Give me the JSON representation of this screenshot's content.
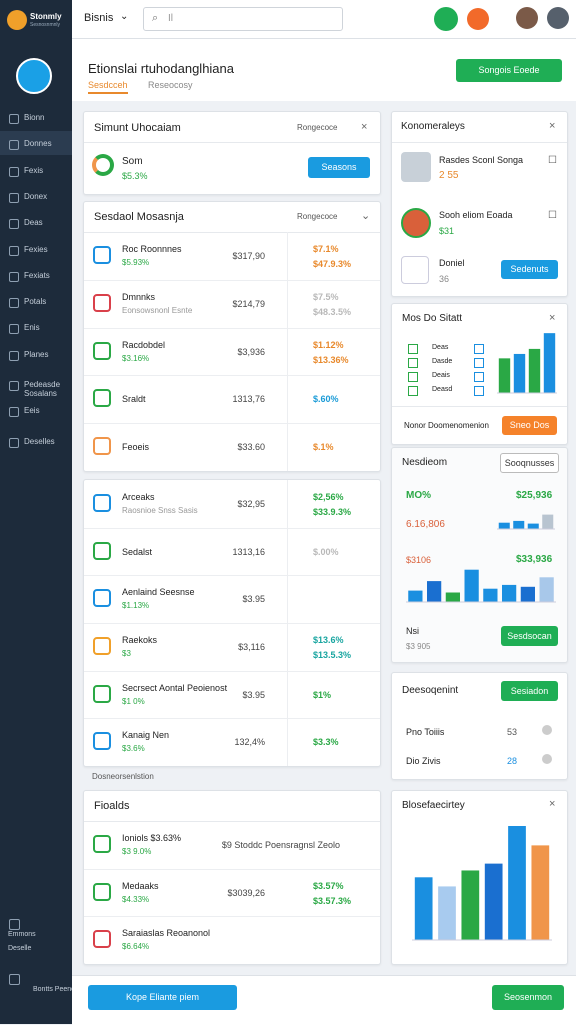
{
  "topbar": {
    "workspace": "Bisnis",
    "search": "Il"
  },
  "sidebar": {
    "brand": "Stonmly",
    "brand_sub": "Sesnosnmnly",
    "nav": [
      "Bionn",
      "Donnes",
      "Fexis",
      "Donex",
      "Deas",
      "Fexies",
      "Fexiats",
      "Potals",
      "Enis",
      "Planes",
      "Pedeasde Sosalans",
      "Eeis",
      "Deselles"
    ],
    "footer": [
      "Emmons",
      "Deselle",
      "Bontts Peenos"
    ]
  },
  "header": {
    "title": "Etionslai rtuhodanglhiana",
    "tabs": [
      "Sesdcceh",
      "Reseocosy"
    ],
    "button": "Songois Eoede"
  },
  "left": {
    "panel1": {
      "title": "Simunt Uhocaiam",
      "action": "Rongecoce",
      "item": "Som",
      "item_sub": "$5.3%",
      "button": "Seasons"
    },
    "panel2": {
      "title": "Sesdaol Mosasnja",
      "action": "Rongecoce",
      "rows": [
        {
          "title": "Roc Roonnnes",
          "sub": "$5.93%",
          "value": "$317,90",
          "pct": "$7.1%",
          "pct2": "$47.9.3%",
          "color": "#e8892c"
        },
        {
          "title": "Dmnnks",
          "sub": "Eonsowsnonl Esnte",
          "value": "$214,79",
          "pct": "$7.5%",
          "pct2": "$48.3.5%",
          "color": "#b8b8b8"
        },
        {
          "title": "Racdobdel",
          "sub": "$3.16%",
          "value": "$3,936",
          "pct": "$1.12%",
          "pct2": "$13.36%",
          "color": "#e8892c"
        },
        {
          "title": "Sraldt",
          "value": "1313,76",
          "pct": "$.60%",
          "color": "#1a9bd7"
        },
        {
          "title": "Feoeis",
          "value": "$33.60",
          "pct": "$.1%",
          "color": "#e8892c"
        }
      ]
    },
    "panel3": {
      "rows": [
        {
          "title": "Arceaks",
          "sub": "Raosnioe Snss Sasis",
          "value": "$32,95",
          "pct": "$2,56%",
          "pct2": "$33.9.3%",
          "color": "#2aa845"
        },
        {
          "title": "Sedalst",
          "value": "1313,16",
          "pct": "$.00%",
          "color": "#b8b8b8"
        },
        {
          "title": "Aenlaind Seesnse",
          "sub": "$1.13%",
          "value": "$3.95"
        },
        {
          "title": "Raekoks",
          "sub": "$3",
          "value": "$3,116",
          "pct": "$13.6%",
          "pct2": "$13.5.3%",
          "color": "#18a5a0"
        },
        {
          "title": "Secrsect Aontal Peoienost",
          "sub": "$1 0%",
          "value": "$3.95",
          "pct": "$1%",
          "color": "#2aa845"
        },
        {
          "title": "Kanaig Nen",
          "sub": "$3.6%",
          "value": "132,4%",
          "pct": "$3.3%",
          "color": "#2aa845"
        }
      ]
    },
    "section_label": "Dosneorsenlstion",
    "panel4": {
      "title": "Fioalds",
      "rows": [
        {
          "title": "Ioniols $3.63%",
          "sub": "$3 9.0%",
          "value": "$9 Stoddc Poensragnsl Zeolo"
        },
        {
          "title": "Medaaks",
          "sub": "$4.33%",
          "value": "$3039,26",
          "pct": "$3.57%",
          "pct2": "$3.57.3%",
          "color": "#2aa845"
        },
        {
          "title": "Saraiaslas Reoanonol",
          "sub": "$6.64%"
        }
      ]
    }
  },
  "right": {
    "panelA": {
      "title": "Konomeraleys",
      "items": [
        {
          "title": "Rasdes Sconl Songa",
          "sub": "2 55"
        },
        {
          "title": "Sooh eliom Eoada",
          "sub": "$31"
        },
        {
          "title": "Doniel",
          "sub": "36"
        }
      ],
      "button": "Sedenuts"
    },
    "panelB": {
      "title": "Mos Do Sitatt",
      "legend": [
        "Deas",
        "Dasde",
        "Deais",
        "Deasd"
      ],
      "footer": "Nonor Doomenomenion",
      "button": "Sneo Dos"
    },
    "panelC": {
      "title": "Nesdieom",
      "button": "Sooqnusses",
      "stat1": "MO%",
      "stat1_value": "$25,936",
      "stat2": "6.16,806",
      "stat3": "$3106",
      "stat3_value": "$33,936",
      "stat4": "Nsi",
      "stat4_sub": "$3 905",
      "button2": "Sesdsocan"
    },
    "panelD": {
      "title": "Deesoqenint",
      "button": "Sesiadon",
      "rows": [
        {
          "title": "Pno Toiiis",
          "value": "53"
        },
        {
          "title": "Dio Zivis",
          "value": "28"
        }
      ]
    },
    "panelE": {
      "title": "Blosefaecirtey"
    }
  },
  "charts": [
    {
      "ylim": [
        0,
        100
      ],
      "values": [
        55,
        62,
        70,
        95
      ],
      "colors": [
        "#2aa845",
        "#1a8fe0",
        "#2aa845",
        "#1a8fe0"
      ]
    },
    {
      "ylim": [
        0,
        100
      ],
      "values": [
        35,
        45,
        30,
        80
      ],
      "colors": [
        "#1a8fe0",
        "#1a8fe0",
        "#1a8fe0",
        "#b8c4d0"
      ]
    },
    {
      "ylim": [
        0,
        100
      ],
      "values": [
        30,
        55,
        25,
        85,
        35,
        45,
        40,
        65
      ],
      "colors": [
        "#1a8fe0",
        "#1a6fd0",
        "#2aa845",
        "#1a8fe0",
        "#1a8fe0",
        "#1a8fe0",
        "#1a6fd0",
        "#a8c8ea"
      ]
    },
    {
      "ylim": [
        0,
        100
      ],
      "values": [
        55,
        47,
        61,
        67,
        100,
        83
      ],
      "colors": [
        "#1a8fe0",
        "#a8cbef",
        "#2aa845",
        "#1a6fd0",
        "#1a8fe0",
        "#f0954a"
      ]
    }
  ],
  "bottombar": {
    "button_left": "Kope Eliante piem",
    "button_right": "Seosenmon"
  }
}
